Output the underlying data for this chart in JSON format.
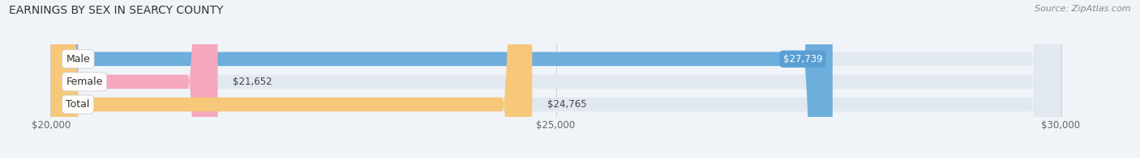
{
  "title": "EARNINGS BY SEX IN SEARCY COUNTY",
  "source": "Source: ZipAtlas.com",
  "categories": [
    "Male",
    "Female",
    "Total"
  ],
  "values": [
    27739,
    21652,
    24765
  ],
  "bar_colors": [
    "#6eaedd",
    "#f5a8be",
    "#f7c87a"
  ],
  "label_values": [
    "$27,739",
    "$21,652",
    "$24,765"
  ],
  "value_label_colors": [
    "#5a9fd4",
    "#f092aa",
    "#f0b85a"
  ],
  "xmin": 20000,
  "xmax": 30000,
  "xticks": [
    20000,
    25000,
    30000
  ],
  "xtick_labels": [
    "$20,000",
    "$25,000",
    "$30,000"
  ],
  "background_color": "#f0f4f8",
  "bar_bg_color": "#e2e8f0",
  "title_fontsize": 10,
  "source_fontsize": 8,
  "cat_label_fontsize": 9,
  "value_fontsize": 8.5
}
